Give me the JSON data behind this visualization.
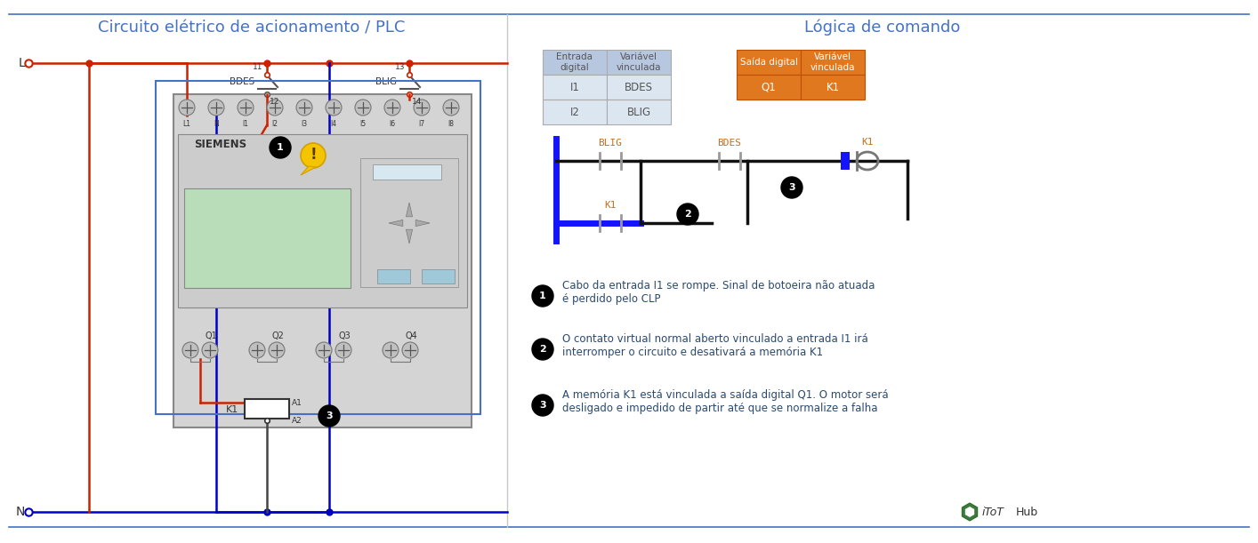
{
  "title_left": "Circuito elétrico de acionamento / PLC",
  "title_right": "Lógica de comando",
  "title_color": "#4472c4",
  "bg_color": "#ffffff",
  "table_left_headers": [
    "Entrada\ndigital",
    "Variável\nvinculada"
  ],
  "table_left_rows": [
    [
      "I1",
      "BDES"
    ],
    [
      "I2",
      "BLIG"
    ]
  ],
  "table_left_header_color": "#b8c7e0",
  "table_left_row_color": "#dce6f1",
  "table_left_text_color": "#555555",
  "table_right_headers": [
    "Saída digital",
    "Variável\nvinculada"
  ],
  "table_right_rows": [
    [
      "Q1",
      "K1"
    ]
  ],
  "table_right_header_color": "#e07820",
  "table_right_row_color": "#e07820",
  "ann1_text": "Cabo da entrada I1 se rompe. Sinal de botoeira não atuada\né perdido pelo CLP",
  "ann2_text": "O contato virtual normal aberto vinculado a entrada I1 irá\ninterromper o circuito e desativará a memória K1",
  "ann3_text": "A memória K1 está vinculada a saída digital Q1. O motor será\ndesligado e impedido de partir até que se normalize a falha",
  "footer": "iToT Hub",
  "wire_red": "#cc2200",
  "wire_blue": "#0000cc",
  "ladder_blue": "#1414ff",
  "ladder_black": "#111111",
  "contact_gray": "#999999"
}
